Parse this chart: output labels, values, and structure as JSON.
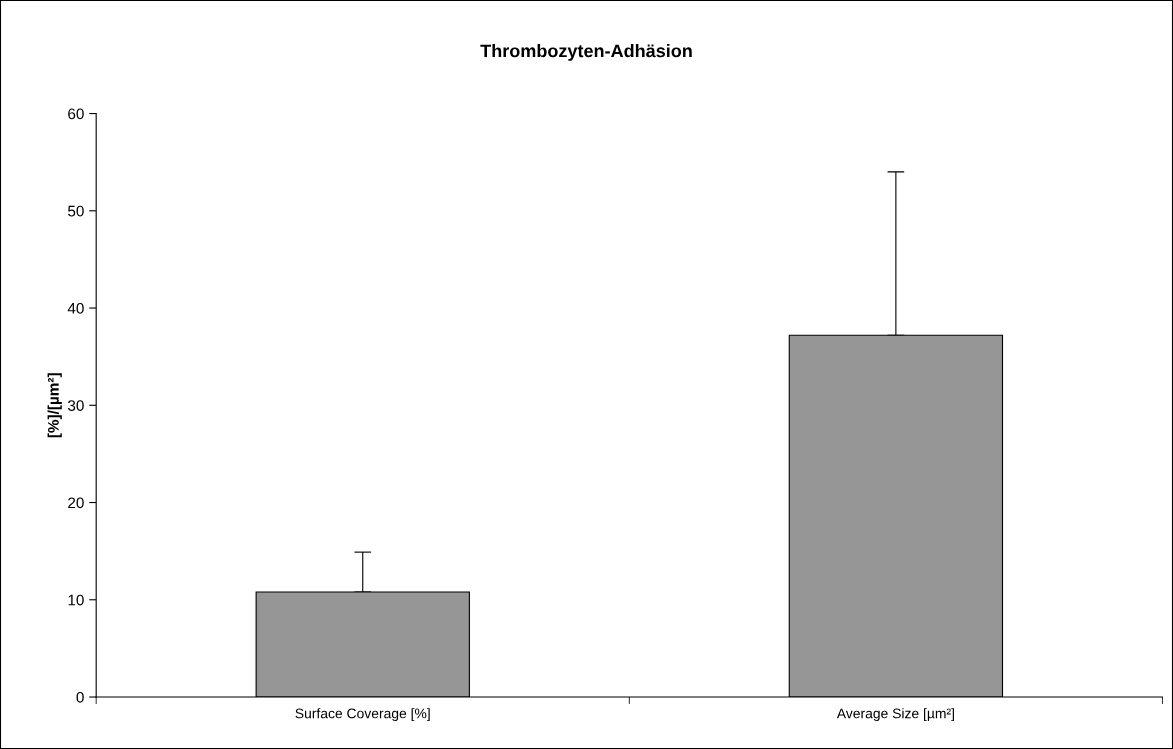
{
  "chart_data": {
    "type": "bar",
    "title": "Thrombozyten-Adhäsion",
    "ylabel": "[%]/[µm²]",
    "categories": [
      "Surface Coverage [%]",
      "Average Size [µm²]"
    ],
    "values": [
      10.8,
      37.2
    ],
    "errors": [
      [
        10.8,
        14.9
      ],
      [
        37.2,
        54.0
      ]
    ],
    "color": "#969696",
    "ylim": [
      0,
      60
    ],
    "yticks": [
      0,
      10,
      20,
      30,
      40,
      50,
      60
    ],
    "grid": false,
    "legend": false
  }
}
